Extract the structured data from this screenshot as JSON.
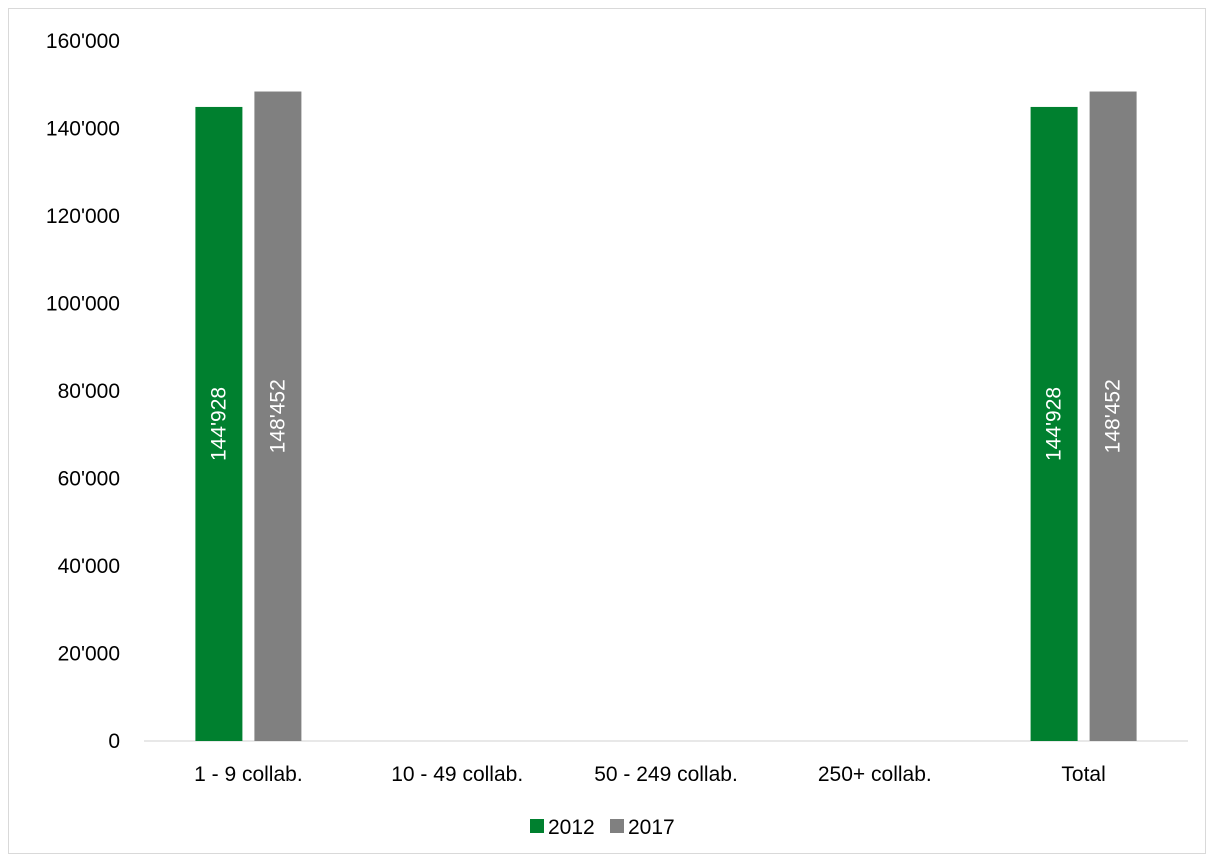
{
  "chart_data": {
    "type": "bar",
    "categories": [
      "1 - 9 collab.",
      "10 - 49 collab.",
      "50 - 249 collab.",
      "250+ collab.",
      "Total"
    ],
    "series": [
      {
        "name": "2012",
        "color": "#00802f",
        "values": [
          144928,
          null,
          null,
          null,
          144928
        ]
      },
      {
        "name": "2017",
        "color": "#808080",
        "values": [
          148452,
          null,
          null,
          null,
          148452
        ]
      }
    ],
    "data_labels": {
      "2012": [
        "144'928",
        "",
        "",
        "",
        "144'928"
      ],
      "2017": [
        "148'452",
        "",
        "",
        "",
        "148'452"
      ]
    },
    "y_ticks": [
      "0",
      "20'000",
      "40'000",
      "60'000",
      "80'000",
      "100'000",
      "120'000",
      "140'000",
      "160'000"
    ],
    "ylim": [
      0,
      160000
    ],
    "title": "",
    "xlabel": "",
    "ylabel": "",
    "grid": false,
    "legend_position": "bottom"
  }
}
